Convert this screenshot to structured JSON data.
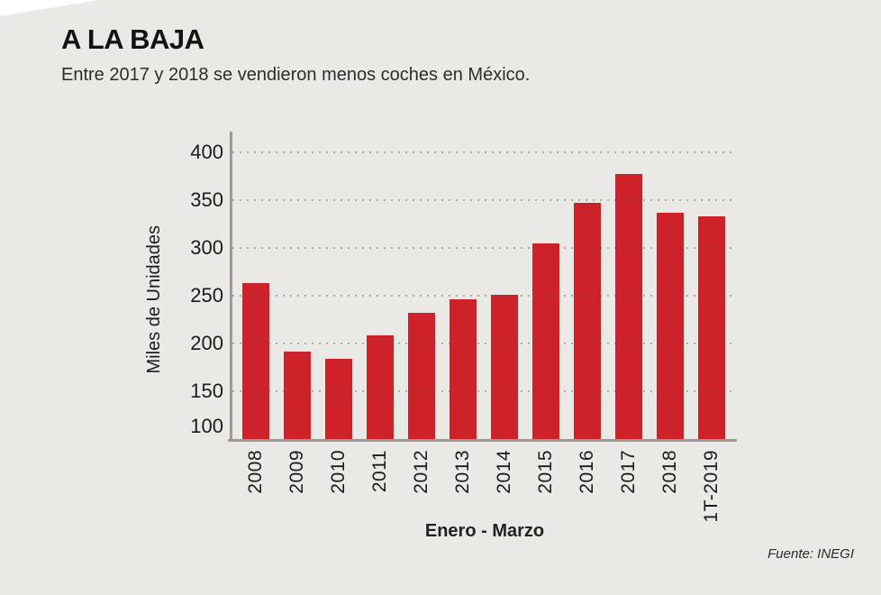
{
  "header": {
    "title": "A LA BAJA",
    "subtitle": "Entre 2017 y 2018 se vendieron menos coches en México."
  },
  "footer": {
    "source": "Fuente: INEGI"
  },
  "colors": {
    "background": "#eae9e6",
    "bar": "#cd222a",
    "axis": "#9b9a97",
    "text": "#1c1b1a"
  },
  "chart_data": {
    "type": "bar",
    "title": "A LA BAJA",
    "subtitle": "Entre 2017 y 2018 se vendieron menos coches en México.",
    "categories": [
      "2008",
      "2009",
      "2010",
      "2011",
      "2012",
      "2013",
      "2014",
      "2015",
      "2016",
      "2017",
      "2018",
      "1T-2019"
    ],
    "values": [
      263,
      192,
      184,
      209,
      232,
      246,
      251,
      305,
      347,
      378,
      337,
      333
    ],
    "xlabel": "Enero - Marzo",
    "ylabel": "Miles de Unidades",
    "ylim": [
      100,
      422
    ],
    "yticks": [
      100,
      150,
      200,
      250,
      300,
      350,
      400
    ],
    "gridlines": [
      150,
      200,
      250,
      300,
      350,
      400
    ],
    "grid_style": "dotted-horizontal-over-bars",
    "legend": "none",
    "bar_color": "#cd222a",
    "source": "Fuente: INEGI"
  }
}
